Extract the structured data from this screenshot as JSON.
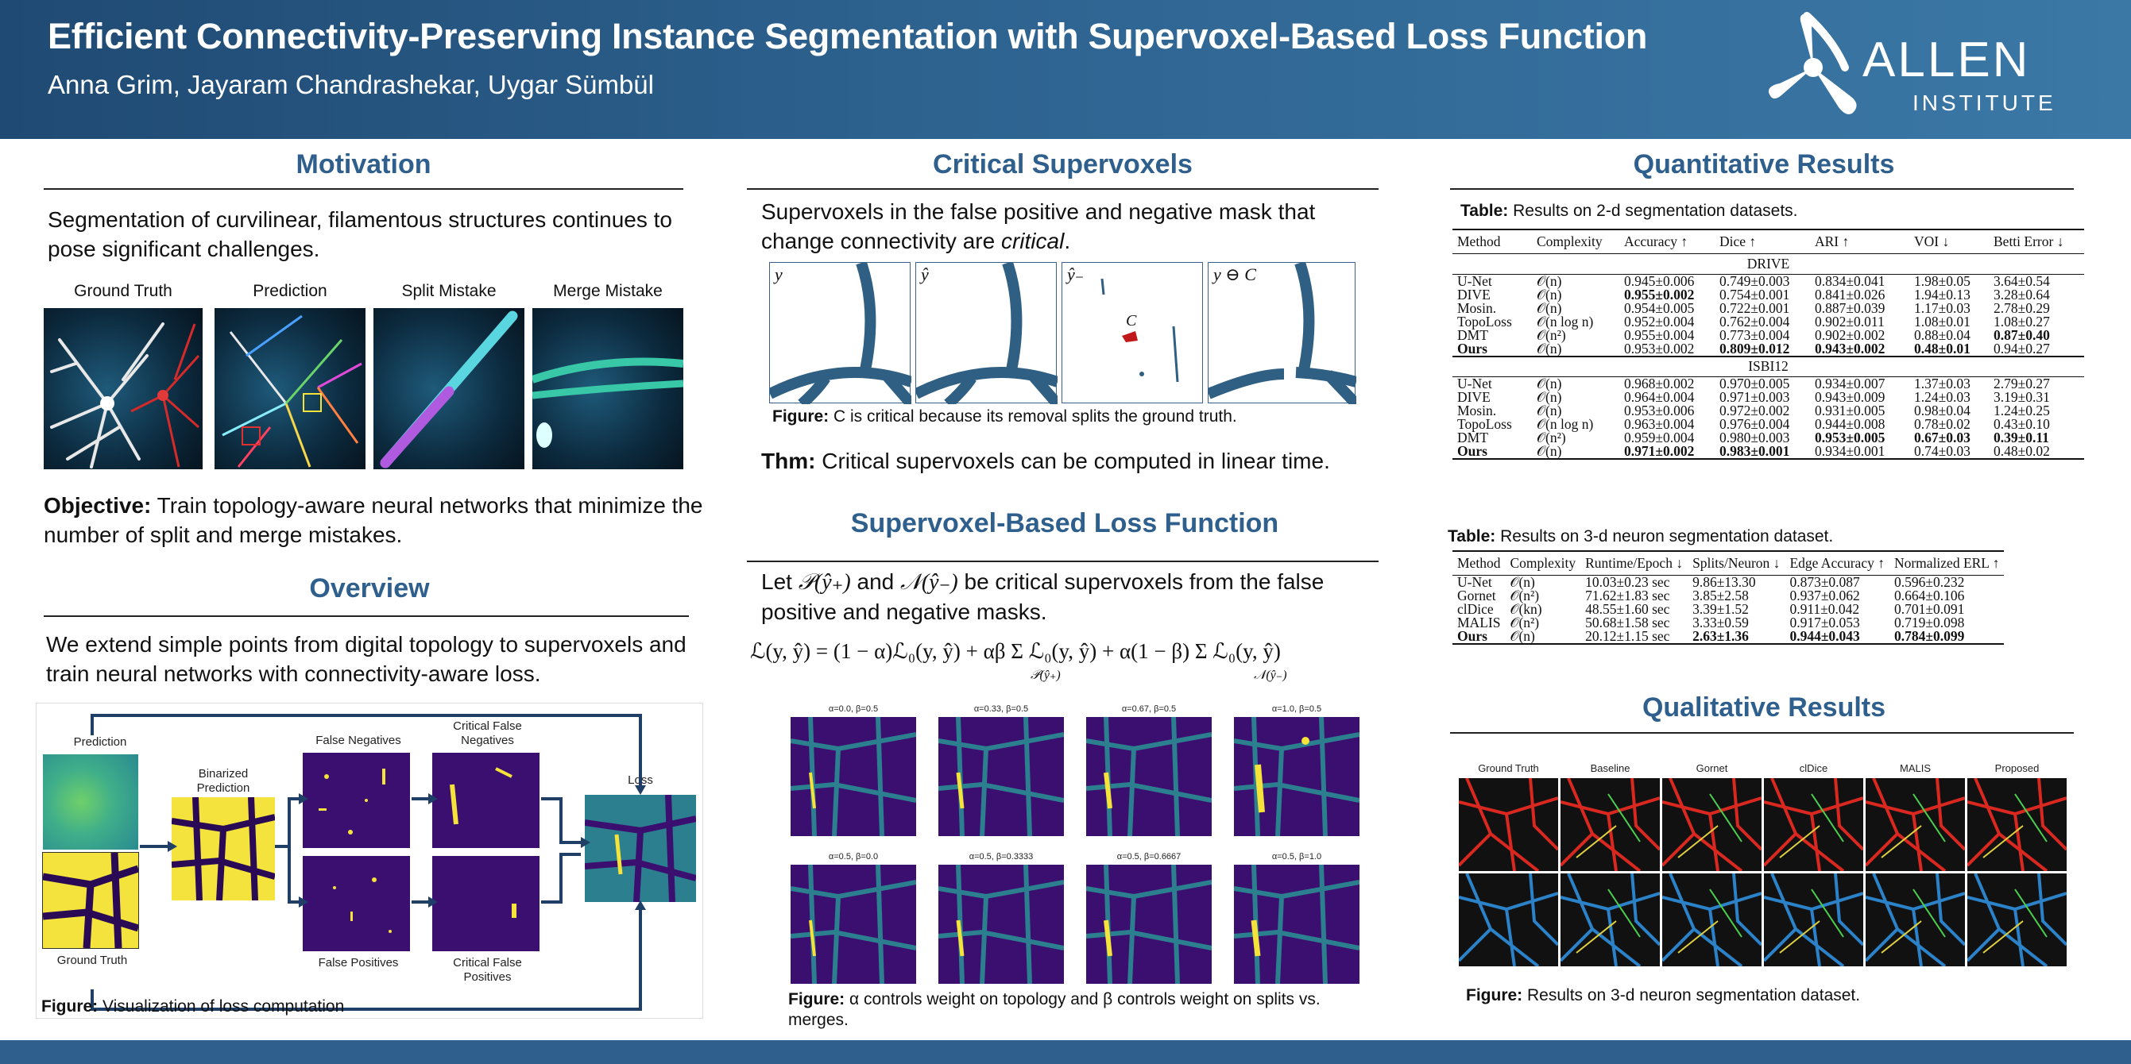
{
  "header": {
    "title": "Efficient Connectivity-Preserving Instance Segmentation with Supervoxel-Based Loss Function",
    "authors": "Anna Grim, Jayaram Chandrashekar, Uygar Sümbül",
    "logo_word": "ALLEN",
    "logo_sub": "INSTITUTE"
  },
  "motivation": {
    "title": "Motivation",
    "text": "Segmentation of curvilinear, filamentous structures continues to pose significant challenges.",
    "image_labels": [
      "Ground Truth",
      "Prediction",
      "Split Mistake",
      "Merge Mistake"
    ],
    "objective_label": "Objective:",
    "objective_text": " Train topology-aware neural networks that minimize the number of split and merge mistakes."
  },
  "overview": {
    "title": "Overview",
    "text": "We extend simple points from digital topology to supervoxels and train neural networks with connectivity-aware loss.",
    "diagram_labels": {
      "prediction": "Prediction",
      "ground_truth": "Ground Truth",
      "binarized": "Binarized Prediction",
      "false_negatives": "False Negatives",
      "false_positives": "False Positives",
      "critical_fn": "Critical False Negatives",
      "critical_fp": "Critical False Positives",
      "loss": "Loss"
    },
    "caption_label": "Figure:",
    "caption_text": "  Visualization of loss computation"
  },
  "critical": {
    "title": "Critical Supervoxels",
    "text_plain": "Supervoxels in the false positive and negative mask that change connectivity are ",
    "text_em": "critical",
    "text_end": ".",
    "panel_labels": [
      "y",
      "ŷ",
      "ŷ₋",
      "y ⊖ C"
    ],
    "c_label": "C",
    "caption_label": "Figure:",
    "caption_text": "  C is critical because its removal splits the ground truth.",
    "thm_label": "Thm:",
    "thm_text": " Critical supervoxels can be computed in linear time."
  },
  "loss": {
    "title": "Supervoxel-Based Loss Function",
    "text_1": "Let ",
    "p_sym": "𝒫(ŷ₊)",
    "text_2": " and ",
    "n_sym": "𝒩(ŷ₋)",
    "text_3": " be critical supervoxels from the false positive and negative masks.",
    "equation": "ℒ(y, ŷ) = (1 − α)ℒ₀(y, ŷ) + αβ Σ ℒ₀(y, ŷ) + α(1 − β) Σ ℒ₀(y, ŷ)",
    "eq_sub_1": "𝒫(ŷ₊)",
    "eq_sub_2": "𝒩(ŷ₋)",
    "grid_labels": [
      "α=0.0, β=0.5",
      "α=0.33, β=0.5",
      "α=0.67, β=0.5",
      "α=1.0, β=0.5",
      "α=0.5, β=0.0",
      "α=0.5, β=0.3333",
      "α=0.5, β=0.6667",
      "α=0.5, β=1.0"
    ],
    "caption_label": "Figure:",
    "caption_text": " α controls weight on topology and β controls weight on splits vs. merges."
  },
  "quant": {
    "title": "Quantitative Results",
    "table1_caption_label": "Table:",
    "table1_caption_text": " Results on 2-d segmentation datasets.",
    "table1_headers": [
      "Method",
      "Complexity",
      "Accuracy ↑",
      "Dice ↑",
      "ARI ↑",
      "VOI ↓",
      "Betti Error ↓"
    ],
    "table1_groups": [
      {
        "name": "DRIVE",
        "rows": [
          [
            "U-Net",
            "𝒪(n)",
            "0.945±0.006",
            "0.749±0.003",
            "0.834±0.041",
            "1.98±0.05",
            "3.64±0.54"
          ],
          [
            "DIVE",
            "𝒪(n)",
            "0.955±0.002",
            "0.754±0.001",
            "0.841±0.026",
            "1.94±0.13",
            "3.28±0.64"
          ],
          [
            "Mosin.",
            "𝒪(n)",
            "0.954±0.005",
            "0.722±0.001",
            "0.887±0.039",
            "1.17±0.03",
            "2.78±0.29"
          ],
          [
            "TopoLoss",
            "𝒪(n log n)",
            "0.952±0.004",
            "0.762±0.004",
            "0.902±0.011",
            "1.08±0.01",
            "1.08±0.27"
          ],
          [
            "DMT",
            "𝒪(n²)",
            "0.955±0.004",
            "0.773±0.004",
            "0.902±0.002",
            "0.88±0.04",
            "0.87±0.40"
          ],
          [
            "Ours",
            "𝒪(n)",
            "0.953±0.002",
            "0.809±0.012",
            "0.943±0.002",
            "0.48±0.01",
            "0.94±0.27"
          ]
        ],
        "bold": [
          [
            1,
            2
          ],
          [
            4,
            6
          ],
          [
            5,
            0
          ],
          [
            5,
            3
          ],
          [
            5,
            4
          ],
          [
            5,
            5
          ]
        ]
      },
      {
        "name": "ISBI12",
        "rows": [
          [
            "U-Net",
            "𝒪(n)",
            "0.968±0.002",
            "0.970±0.005",
            "0.934±0.007",
            "1.37±0.03",
            "2.79±0.27"
          ],
          [
            "DIVE",
            "𝒪(n)",
            "0.964±0.004",
            "0.971±0.003",
            "0.943±0.009",
            "1.24±0.03",
            "3.19±0.31"
          ],
          [
            "Mosin.",
            "𝒪(n)",
            "0.953±0.006",
            "0.972±0.002",
            "0.931±0.005",
            "0.98±0.04",
            "1.24±0.25"
          ],
          [
            "TopoLoss",
            "𝒪(n log n)",
            "0.963±0.004",
            "0.976±0.004",
            "0.944±0.008",
            "0.78±0.02",
            "0.43±0.10"
          ],
          [
            "DMT",
            "𝒪(n²)",
            "0.959±0.004",
            "0.980±0.003",
            "0.953±0.005",
            "0.67±0.03",
            "0.39±0.11"
          ],
          [
            "Ours",
            "𝒪(n)",
            "0.971±0.002",
            "0.983±0.001",
            "0.934±0.001",
            "0.74±0.03",
            "0.48±0.02"
          ]
        ],
        "bold": [
          [
            4,
            4
          ],
          [
            4,
            5
          ],
          [
            4,
            6
          ],
          [
            5,
            0
          ],
          [
            5,
            2
          ],
          [
            5,
            3
          ]
        ]
      }
    ],
    "table2_caption_label": "Table:",
    "table2_caption_text": " Results on 3-d neuron segmentation dataset.",
    "table2_headers": [
      "Method",
      "Complexity",
      "Runtime/Epoch ↓",
      "Splits/Neuron ↓",
      "Edge Accuracy ↑",
      "Normalized ERL ↑"
    ],
    "table2_rows": [
      [
        "U-Net",
        "𝒪(n)",
        "10.03±0.23 sec",
        "9.86±13.30",
        "0.873±0.087",
        "0.596±0.232"
      ],
      [
        "Gornet",
        "𝒪(n²)",
        "71.62±1.83 sec",
        "3.85±2.58",
        "0.937±0.062",
        "0.664±0.106"
      ],
      [
        "clDice",
        "𝒪(kn)",
        "48.55±1.60 sec",
        "3.39±1.52",
        "0.911±0.042",
        "0.701±0.091"
      ],
      [
        "MALIS",
        "𝒪(n²)",
        "50.68±1.58 sec",
        "3.33±0.59",
        "0.917±0.053",
        "0.719±0.098"
      ],
      [
        "Ours",
        "𝒪(n)",
        "20.12±1.15 sec",
        "2.63±1.36",
        "0.944±0.043",
        "0.784±0.099"
      ]
    ],
    "table2_bold": [
      [
        4,
        0
      ],
      [
        4,
        3
      ],
      [
        4,
        4
      ],
      [
        4,
        5
      ]
    ]
  },
  "qual": {
    "title": "Qualitative Results",
    "labels": [
      "Ground Truth",
      "Baseline",
      "Gornet",
      "clDice",
      "MALIS",
      "Proposed"
    ],
    "caption_label": "Figure:",
    "caption_text": " Results on 3-d neuron segmentation dataset."
  },
  "colors": {
    "header_dark": "#1f4a73",
    "section_title": "#2f5f8c",
    "viridis_dark": "#3b0f6f",
    "viridis_mid": "#2c7f8e",
    "viridis_bright": "#f5e23a",
    "mask_blue": "#2f5f82",
    "critical_red": "#c0171a"
  }
}
